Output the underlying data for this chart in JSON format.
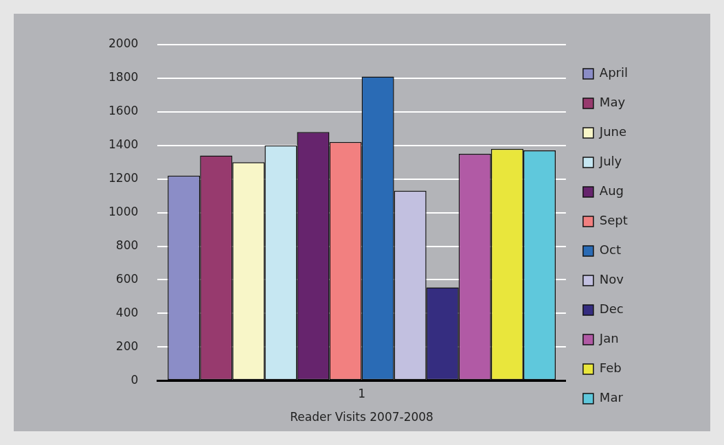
{
  "chart_data": {
    "type": "bar",
    "xlabel": "Reader Visits 2007-2008",
    "categories": [
      "1"
    ],
    "series": [
      {
        "name": "April",
        "color": "#8b8dc7",
        "values": [
          1220
        ]
      },
      {
        "name": "May",
        "color": "#973a6e",
        "values": [
          1340
        ]
      },
      {
        "name": "June",
        "color": "#f8f6c8",
        "values": [
          1300
        ]
      },
      {
        "name": "July",
        "color": "#c6e7f2",
        "values": [
          1400
        ]
      },
      {
        "name": "Aug",
        "color": "#66246d",
        "values": [
          1480
        ]
      },
      {
        "name": "Sept",
        "color": "#f28080",
        "values": [
          1420
        ]
      },
      {
        "name": "Oct",
        "color": "#2a6bb5",
        "values": [
          1810
        ]
      },
      {
        "name": "Nov",
        "color": "#c2c0e0",
        "values": [
          1130
        ]
      },
      {
        "name": "Dec",
        "color": "#352d80",
        "values": [
          555
        ]
      },
      {
        "name": "Jan",
        "color": "#b15aa5",
        "values": [
          1350
        ]
      },
      {
        "name": "Feb",
        "color": "#e9e63c",
        "values": [
          1380
        ]
      },
      {
        "name": "Mar",
        "color": "#5fc8dc",
        "values": [
          1370
        ]
      }
    ],
    "ylim": [
      0,
      2000
    ],
    "yticks": [
      0,
      200,
      400,
      600,
      800,
      1000,
      1200,
      1400,
      1600,
      1800,
      2000
    ],
    "grid": "y",
    "legend": "right"
  }
}
